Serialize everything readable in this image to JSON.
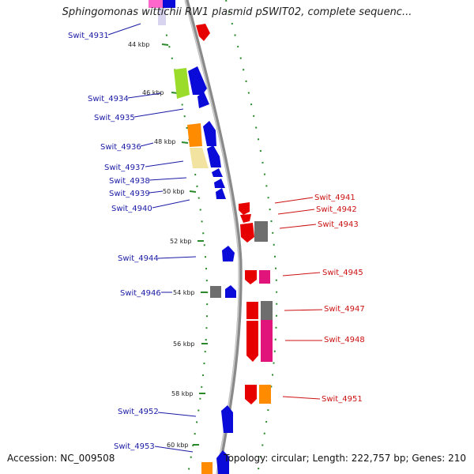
{
  "header": {
    "title": "Sphingomonas wittichii RW1 plasmid pSWIT02, complete sequenc..."
  },
  "footer": {
    "accession": "Accession: NC_009508",
    "summary": "Topology: circular; Length: 222,757 bp; Genes: 210"
  },
  "colors": {
    "backbone": "#8a8a8a",
    "ticks": "#2a8a2a",
    "left_label": "#1a1aa6",
    "right_label": "#cc1111",
    "blue": "#0b0bd9",
    "red": "#e60000",
    "grey": "#6e6e6e",
    "magenta": "#e0147a",
    "orange": "#ff8c00",
    "lime": "#9bdc2a",
    "pale_yellow": "#f2e3a0",
    "pink": "#ff66cc",
    "lavender": "#d8d4f0"
  },
  "scale_labels": [
    "44 kbp",
    "46 kbp",
    "48 kbp",
    "50 kbp",
    "52 kbp",
    "54 kbp",
    "56 kbp",
    "58 kbp",
    "60 kbp"
  ],
  "left_genes": [
    "Swit_4931",
    "Swit_4934",
    "Swit_4935",
    "Swit_4936",
    "Swit_4937",
    "Swit_4938",
    "Swit_4939",
    "Swit_4940",
    "Swit_4944",
    "Swit_4946",
    "Swit_4952",
    "Swit_4953"
  ],
  "right_genes": [
    "Swit_4941",
    "Swit_4942",
    "Swit_4943",
    "Swit_4945",
    "Swit_4947",
    "Swit_4948",
    "Swit_4951"
  ]
}
